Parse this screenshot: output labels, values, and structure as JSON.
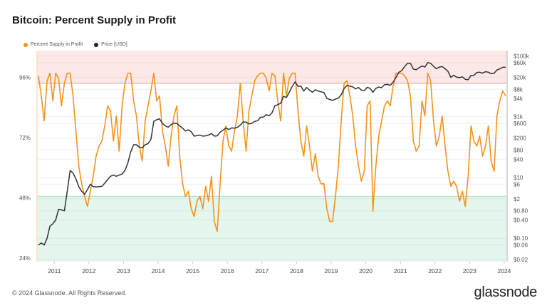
{
  "title": "Bitcoin: Percent Supply in Profit",
  "footer": "© 2024 Glassnode. All Rights Reserved.",
  "logo": "glassnode",
  "colors": {
    "profit": "#f7931a",
    "price": "#333333",
    "red_zone": "#fde8e8",
    "red_line": "#f5a3a3",
    "green_zone": "#e5f6ed",
    "green_line": "#b5e2c6"
  },
  "chart_data": {
    "type": "line",
    "title": "Bitcoin: Percent Supply in Profit",
    "legend": [
      "Percent Supply in Profit",
      "Price [USD]"
    ],
    "legend_position": "top-left",
    "grid": true,
    "x_ticks": [
      "2011",
      "2012",
      "2013",
      "2014",
      "2015",
      "2016",
      "2017",
      "2018",
      "2019",
      "2020",
      "2021",
      "2022",
      "2023",
      "2024"
    ],
    "y_left": {
      "ticks": [
        "24%",
        "48%",
        "72%",
        "96%"
      ],
      "tick_values": [
        24,
        48,
        72,
        96
      ],
      "range": [
        24,
        108
      ]
    },
    "y_right": {
      "scale": "log",
      "ticks": [
        "$100k",
        "$60k",
        "$20k",
        "$8k",
        "$4k",
        "$1k",
        "$600",
        "$200",
        "$80",
        "$40",
        "$10",
        "$6",
        "$2",
        "$0.80",
        "$0.40",
        "$0.10",
        "$0.06",
        "$0.02"
      ],
      "tick_values": [
        100000,
        60000,
        20000,
        8000,
        4000,
        1000,
        600,
        200,
        80,
        40,
        10,
        6,
        2,
        0.8,
        0.4,
        0.1,
        0.06,
        0.02
      ],
      "range": [
        0.017,
        150000
      ]
    },
    "bands": [
      {
        "from": 95,
        "to": 108,
        "color": "red"
      },
      {
        "from": 24,
        "to": 50,
        "color": "green"
      }
    ],
    "x_range": [
      "2010-07",
      "2024-01"
    ],
    "series": [
      {
        "name": "Percent Supply in Profit",
        "axis": "left",
        "values": [
          98,
          90,
          80,
          96,
          99,
          88,
          99,
          97,
          86,
          95,
          99,
          99,
          90,
          76,
          62,
          55,
          50,
          46,
          52,
          58,
          66,
          70,
          72,
          78,
          86,
          84,
          72,
          82,
          68,
          86,
          95,
          99,
          99,
          88,
          82,
          70,
          64,
          80,
          86,
          92,
          99,
          88,
          90,
          76,
          70,
          62,
          74,
          82,
          86,
          66,
          55,
          50,
          52,
          45,
          42,
          48,
          50,
          45,
          54,
          48,
          58,
          40,
          36,
          55,
          72,
          78,
          70,
          68,
          76,
          82,
          95,
          80,
          68,
          84,
          90,
          96,
          98,
          99,
          99,
          97,
          92,
          99,
          98,
          88,
          80,
          99,
          90,
          97,
          99,
          99,
          84,
          72,
          66,
          78,
          70,
          60,
          67,
          58,
          55,
          55,
          45,
          40,
          40,
          50,
          62,
          80,
          95,
          96,
          90,
          82,
          70,
          62,
          56,
          60,
          86,
          88,
          44,
          62,
          74,
          80,
          86,
          88,
          86,
          94,
          99,
          99,
          99,
          98,
          96,
          90,
          72,
          68,
          70,
          88,
          82,
          99,
          96,
          80,
          70,
          74,
          82,
          70,
          60,
          54,
          56,
          54,
          48,
          52,
          46,
          58,
          78,
          72,
          70,
          74,
          66,
          70,
          78,
          64,
          60,
          82,
          88,
          92,
          90
        ]
      },
      {
        "name": "Price [USD]",
        "axis": "right",
        "values": [
          0.06,
          0.07,
          0.06,
          0.1,
          0.25,
          0.3,
          0.4,
          0.9,
          0.86,
          0.8,
          3.5,
          17,
          14,
          9,
          5,
          3.5,
          2.8,
          4,
          6,
          5,
          4.9,
          5,
          5.1,
          6.5,
          8.5,
          11,
          12,
          11,
          12,
          13,
          17,
          30,
          70,
          120,
          120,
          100,
          95,
          120,
          130,
          180,
          700,
          800,
          850,
          600,
          500,
          450,
          550,
          620,
          600,
          500,
          420,
          340,
          370,
          320,
          230,
          240,
          250,
          230,
          235,
          250,
          280,
          230,
          235,
          310,
          360,
          430,
          380,
          430,
          420,
          450,
          530,
          680,
          660,
          580,
          610,
          700,
          740,
          960,
          970,
          1180,
          1080,
          1350,
          2300,
          2500,
          2800,
          4700,
          4300,
          6400,
          10000,
          14000,
          10000,
          10300,
          7000,
          9200,
          7500,
          6400,
          7700,
          7000,
          6600,
          6300,
          4000,
          3700,
          3450,
          3800,
          4100,
          5300,
          8500,
          10800,
          10100,
          9600,
          8300,
          9200,
          7500,
          7200,
          9300,
          8600,
          6400,
          8600,
          9500,
          9100,
          11300,
          11600,
          10800,
          13800,
          19700,
          29000,
          33000,
          45000,
          58000,
          57000,
          37000,
          35000,
          41000,
          47000,
          43000,
          61000,
          57000,
          46000,
          38000,
          43000,
          45000,
          38000,
          31500,
          19800,
          23300,
          20000,
          19400,
          20500,
          17100,
          16500,
          23000,
          23100,
          28400,
          29200,
          27200,
          30500,
          29200,
          26000,
          27000,
          34500,
          37700,
          42300,
          42500
        ]
      }
    ]
  }
}
